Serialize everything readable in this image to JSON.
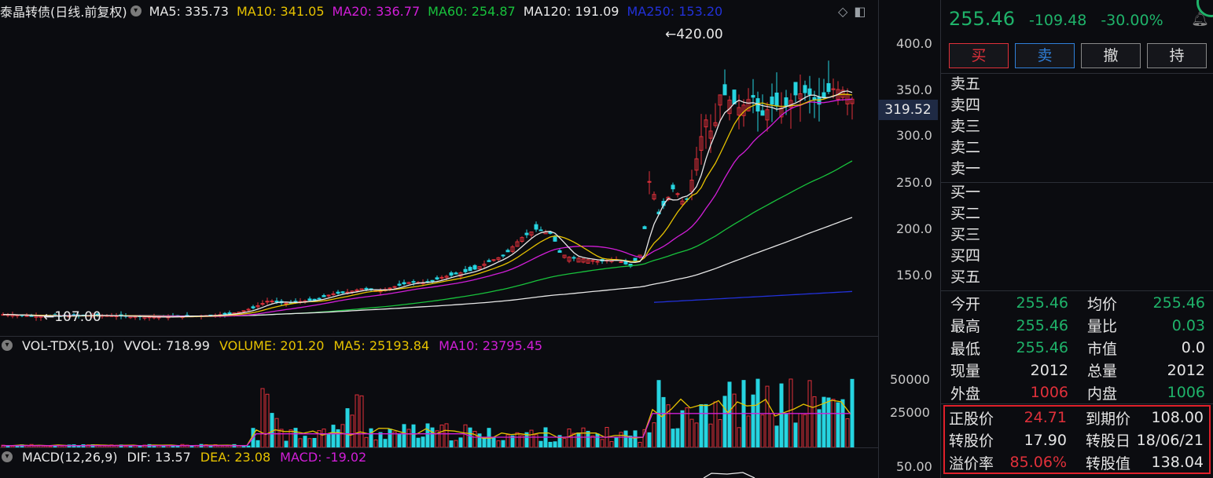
{
  "instrument": {
    "title": "泰晶转债(日线.前复权)",
    "ma": [
      {
        "label": "MA5: 335.73",
        "color": "#e8e8e8"
      },
      {
        "label": "MA10: 341.05",
        "color": "#e6c200"
      },
      {
        "label": "MA20: 336.77",
        "color": "#d21ed8"
      },
      {
        "label": "MA60: 254.87",
        "color": "#18c23c"
      },
      {
        "label": "MA120: 191.09",
        "color": "#e8e8e8"
      },
      {
        "label": "MA250: 153.20",
        "color": "#2231d8"
      }
    ],
    "high_marker": "420.00",
    "low_marker": "107.00",
    "current_price_tag": "319.52",
    "y_ticks": [
      "400.0",
      "350.0",
      "300.0",
      "250.0",
      "200.0",
      "150.0"
    ]
  },
  "volume": {
    "title": "VOL-TDX(5,10)",
    "vvol": "VVOL: 718.99",
    "volume": "VOLUME: 201.20",
    "ma5": "MA5: 25193.84",
    "ma10": "MA10: 23795.45",
    "y_ticks": [
      "50000",
      "25000"
    ]
  },
  "macd": {
    "title": "MACD(12,26,9)",
    "dif": "DIF: 13.57",
    "dea": "DEA: 23.08",
    "macd": "MACD: -19.02",
    "y_tick": "50.00"
  },
  "quote": {
    "last": "255.46",
    "change": "-109.48",
    "pct": "-30.00%"
  },
  "buttons": {
    "buy": "买",
    "sell": "卖",
    "cancel": "撤",
    "hold": "持"
  },
  "order_book": {
    "asks": [
      "卖五",
      "卖四",
      "卖三",
      "卖二",
      "卖一"
    ],
    "bids": [
      "买一",
      "买二",
      "买三",
      "买四",
      "买五"
    ]
  },
  "stats": [
    {
      "k": "今开",
      "v": "255.46",
      "vc": "g",
      "k2": "均价",
      "v2": "255.46",
      "v2c": "g"
    },
    {
      "k": "最高",
      "v": "255.46",
      "vc": "g",
      "k2": "量比",
      "v2": "0.03",
      "v2c": "g"
    },
    {
      "k": "最低",
      "v": "255.46",
      "vc": "g",
      "k2": "市值",
      "v2": "0.0",
      "v2c": "w"
    },
    {
      "k": "现量",
      "v": "2012",
      "vc": "w",
      "k2": "总量",
      "v2": "2012",
      "v2c": "w"
    },
    {
      "k": "外盘",
      "v": "1006",
      "vc": "r",
      "k2": "内盘",
      "v2": "1006",
      "v2c": "g"
    }
  ],
  "bond_info": [
    {
      "k": "正股价",
      "v": "24.71",
      "vc": "r",
      "k2": "到期价",
      "v2": "108.00",
      "v2c": "w"
    },
    {
      "k": "转股价",
      "v": "17.90",
      "vc": "w",
      "k2": "转股日",
      "v2": "18/06/21",
      "v2c": "w"
    },
    {
      "k": "溢价率",
      "v": "85.06%",
      "vc": "r",
      "k2": "转股值",
      "v2": "138.04",
      "v2c": "w"
    }
  ]
}
